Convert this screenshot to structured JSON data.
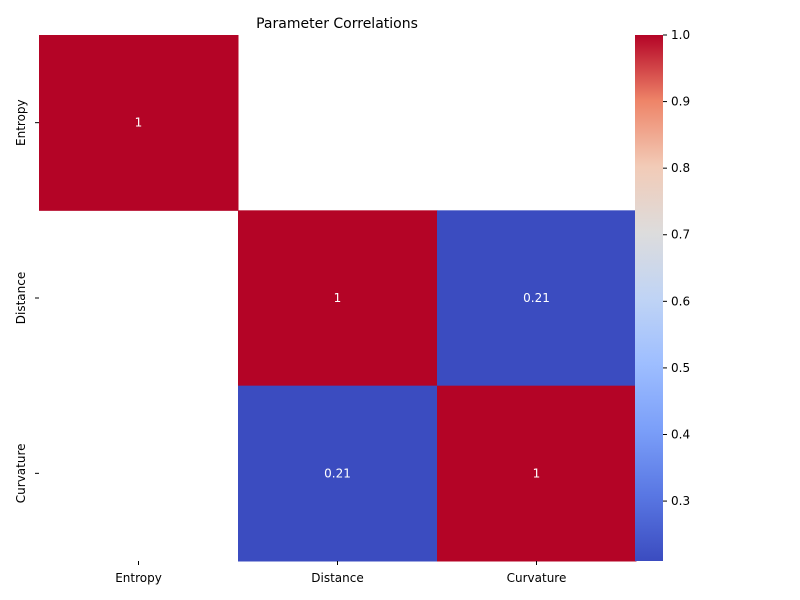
{
  "chart_data": {
    "type": "heatmap",
    "title": "Parameter Correlations",
    "xlabel": "",
    "ylabel": "",
    "x_categories": [
      "Entropy",
      "Distance",
      "Curvature"
    ],
    "y_categories": [
      "Entropy",
      "Distance",
      "Curvature"
    ],
    "matrix": [
      [
        1,
        null,
        null
      ],
      [
        null,
        1,
        0.21
      ],
      [
        null,
        0.21,
        1
      ]
    ],
    "cell_labels": [
      [
        "1",
        "",
        ""
      ],
      [
        "",
        "1",
        "0.21"
      ],
      [
        "",
        "0.21",
        "1"
      ]
    ],
    "colormap": "coolwarm",
    "colors": {
      "low": "#3b4cc0",
      "mid": "#dddddd",
      "high": "#b40426"
    },
    "colorbar": {
      "min": 0.21,
      "max": 1.0,
      "ticks": [
        0.3,
        0.4,
        0.5,
        0.6,
        0.7,
        0.8,
        0.9,
        1.0
      ],
      "tick_labels": [
        "0.3",
        "0.4",
        "0.5",
        "0.6",
        "0.7",
        "0.8",
        "0.9",
        "1.0"
      ]
    }
  }
}
